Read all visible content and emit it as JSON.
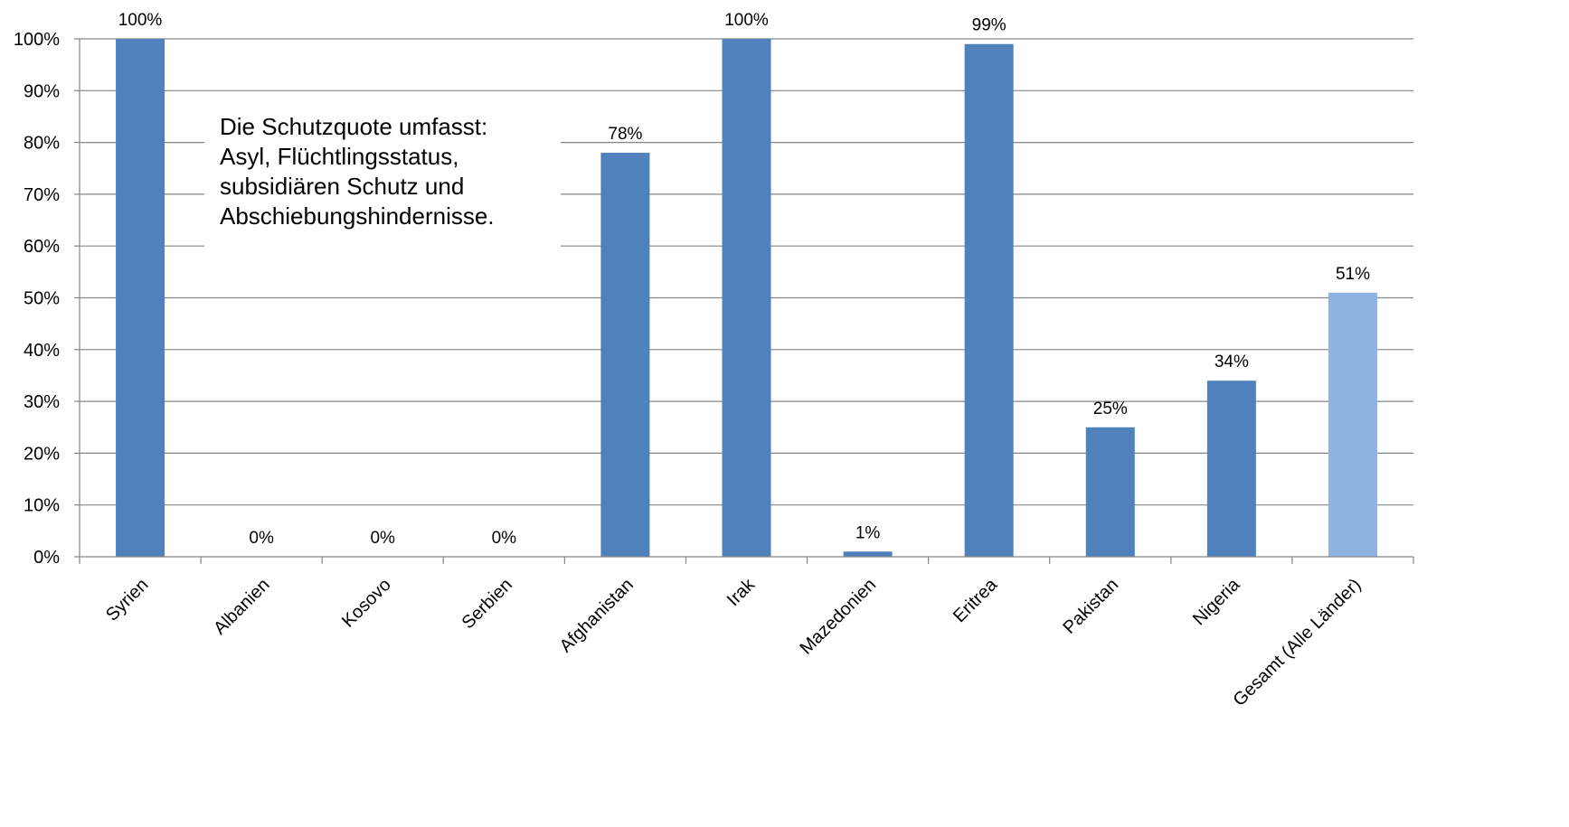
{
  "chart_data": {
    "type": "bar",
    "title": "",
    "xlabel": "",
    "ylabel": "",
    "ylim": [
      0,
      100
    ],
    "yticks": [
      "0%",
      "10%",
      "20%",
      "30%",
      "40%",
      "50%",
      "60%",
      "70%",
      "80%",
      "90%",
      "100%"
    ],
    "grid": true,
    "categories": [
      "Syrien",
      "Albanien",
      "Kosovo",
      "Serbien",
      "Afghanistan",
      "Irak",
      "Mazedonien",
      "Eritrea",
      "Pakistan",
      "Nigeria",
      "Gesamt (Alle Länder)"
    ],
    "values": [
      100,
      0,
      0,
      0,
      78,
      100,
      1,
      99,
      25,
      34,
      51
    ],
    "data_labels": [
      "100%",
      "0%",
      "0%",
      "0%",
      "78%",
      "100%",
      "1%",
      "99%",
      "25%",
      "34%",
      "51%"
    ],
    "colors": {
      "bar": "#4f81bd",
      "highlight_bar": "#8eb4e3",
      "grid": "#868686",
      "axis": "#868686"
    },
    "highlight_index": 10,
    "annotation": {
      "lines": [
        "Die Schutzquote umfasst:",
        "Asyl, Flüchtlingsstatus,",
        "subsidiären Schutz und",
        "Abschiebungshindernisse."
      ]
    }
  }
}
